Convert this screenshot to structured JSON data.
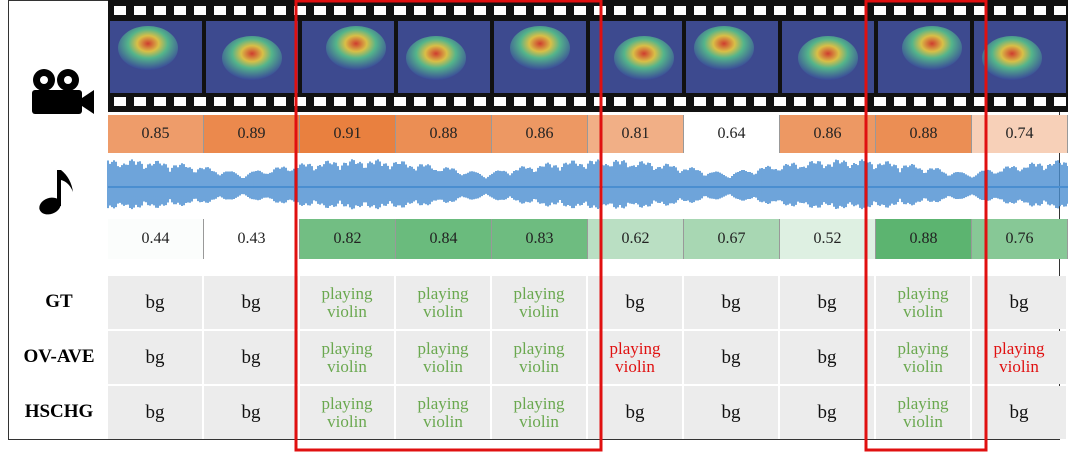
{
  "visual_scores": [
    "0.85",
    "0.89",
    "0.91",
    "0.88",
    "0.86",
    "0.81",
    "0.64",
    "0.86",
    "0.88",
    "0.74"
  ],
  "audio_scores": [
    "0.44",
    "0.43",
    "0.82",
    "0.84",
    "0.83",
    "0.62",
    "0.67",
    "0.52",
    "0.88",
    "0.76"
  ],
  "rows": [
    {
      "label": "GT",
      "cells": [
        "bg",
        "bg",
        "playing violin",
        "playing violin",
        "playing violin",
        "bg",
        "bg",
        "bg",
        "playing violin",
        "bg"
      ]
    },
    {
      "label": "OV-AVE",
      "cells": [
        "bg",
        "bg",
        "playing violin",
        "playing violin",
        "playing violin",
        "playing violin",
        "bg",
        "bg",
        "playing violin",
        "playing violin"
      ]
    },
    {
      "label": "HSCHG",
      "cells": [
        "bg",
        "bg",
        "playing violin",
        "playing violin",
        "playing violin",
        "bg",
        "bg",
        "bg",
        "playing violin",
        "bg"
      ]
    }
  ]
}
